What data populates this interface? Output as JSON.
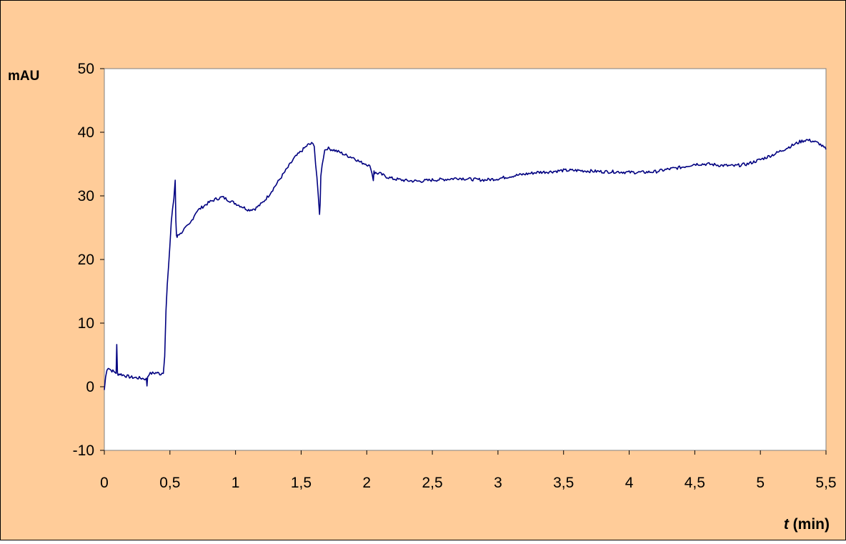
{
  "colors": {
    "background": "#FFCC99",
    "plot_area": "#FFFFFF",
    "series": "#000080",
    "frame": "#000000"
  },
  "chart_data": {
    "type": "line",
    "title": "",
    "xlabel_italic": "t",
    "xlabel_unit": "(min)",
    "ylabel": "mAU",
    "xlim": [
      0,
      5.5
    ],
    "ylim": [
      -10,
      50
    ],
    "x_ticks": [
      "0",
      "0,5",
      "1",
      "1,5",
      "2",
      "2,5",
      "3",
      "3,5",
      "4",
      "4,5",
      "5",
      "5,5"
    ],
    "y_ticks": [
      "50",
      "40",
      "30",
      "20",
      "10",
      "0",
      "-10"
    ],
    "grid": false,
    "legend": false,
    "series": [
      {
        "x": [
          0,
          0.01,
          0.02,
          0.03,
          0.05,
          0.08,
          0.09,
          0.095,
          0.1,
          0.105,
          0.12,
          0.15,
          0.2,
          0.25,
          0.3,
          0.32,
          0.325,
          0.33,
          0.34,
          0.36,
          0.4,
          0.43,
          0.45,
          0.46,
          0.47,
          0.48,
          0.49,
          0.5,
          0.51,
          0.52,
          0.53,
          0.54,
          0.545,
          0.55,
          0.555,
          0.56,
          0.58,
          0.6,
          0.65,
          0.7,
          0.75,
          0.8,
          0.85,
          0.9,
          0.95,
          1.0,
          1.05,
          1.1,
          1.15,
          1.2,
          1.25,
          1.3,
          1.35,
          1.4,
          1.45,
          1.5,
          1.55,
          1.58,
          1.6,
          1.61,
          1.62,
          1.63,
          1.64,
          1.645,
          1.65,
          1.66,
          1.68,
          1.7,
          1.75,
          1.8,
          1.85,
          1.9,
          1.95,
          2.0,
          2.03,
          2.05,
          2.055,
          2.06,
          2.1,
          2.15,
          2.2,
          2.3,
          2.4,
          2.5,
          2.6,
          2.7,
          2.8,
          2.9,
          3.0,
          3.1,
          3.2,
          3.3,
          3.4,
          3.5,
          3.6,
          3.7,
          3.8,
          3.9,
          4.0,
          4.1,
          4.2,
          4.3,
          4.4,
          4.5,
          4.6,
          4.7,
          4.8,
          4.9,
          5.0,
          5.1,
          5.2,
          5.3,
          5.35,
          5.4,
          5.45,
          5.5
        ],
        "y": [
          -0.5,
          1.5,
          2.8,
          3.0,
          2.6,
          2.3,
          2.2,
          6.5,
          2.1,
          2.0,
          2.0,
          1.8,
          1.5,
          1.4,
          1.3,
          1.2,
          0.2,
          1.6,
          2.0,
          2.1,
          2.2,
          2.0,
          2.3,
          5.0,
          12.0,
          16.0,
          19.0,
          22.0,
          26.0,
          28.0,
          29.5,
          32.5,
          26.0,
          23.8,
          23.5,
          24.0,
          24.0,
          24.6,
          25.5,
          27.5,
          28.3,
          29.0,
          29.5,
          29.8,
          29.3,
          28.8,
          28.3,
          27.8,
          28.0,
          28.8,
          30.0,
          31.5,
          33.0,
          34.5,
          36.0,
          37.0,
          38.0,
          38.2,
          38.0,
          35.0,
          33.0,
          30.0,
          27.0,
          29.0,
          33.0,
          35.0,
          37.2,
          37.5,
          37.2,
          36.8,
          36.3,
          36.0,
          35.3,
          35.0,
          34.5,
          32.5,
          34.0,
          33.6,
          33.5,
          33.0,
          32.7,
          32.4,
          32.3,
          32.5,
          32.6,
          32.8,
          32.6,
          32.5,
          32.7,
          33.1,
          33.4,
          33.7,
          33.8,
          34.0,
          34.0,
          33.9,
          33.8,
          33.8,
          33.7,
          33.7,
          33.8,
          34.2,
          34.5,
          35.0,
          35.0,
          34.8,
          34.7,
          35.0,
          35.7,
          36.5,
          37.5,
          38.5,
          38.8,
          38.6,
          38.2,
          37.3
        ]
      }
    ]
  }
}
